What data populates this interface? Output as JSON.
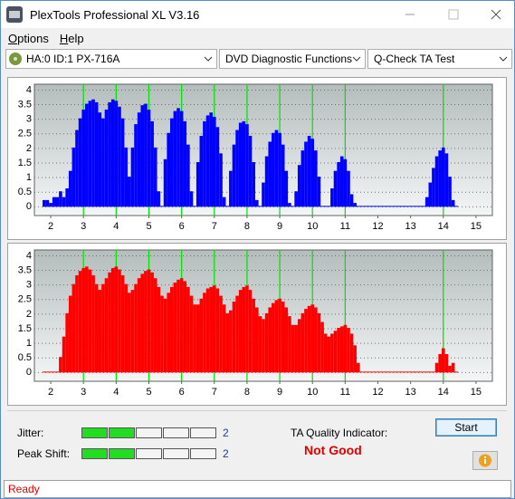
{
  "window": {
    "title": "PlexTools Professional XL V3.16"
  },
  "menu": [
    "Options",
    "Help"
  ],
  "toolbar": [
    "HA:0 ID:1  PX-716A",
    "DVD Diagnostic Functions",
    "Q-Check TA Test"
  ],
  "chart_data": [
    {
      "type": "bar",
      "color": "#0000ff",
      "vline_color": "#00e000",
      "grid": true,
      "xlim": [
        1.5,
        15.5
      ],
      "xticks": [
        2,
        3,
        4,
        5,
        6,
        7,
        8,
        9,
        10,
        11,
        12,
        13,
        14,
        15
      ],
      "ylim": [
        -0.3,
        4.2
      ],
      "yticks": [
        0,
        0.5,
        1,
        1.5,
        2,
        2.5,
        3,
        3.5,
        4
      ],
      "vlines": [
        3,
        4,
        5,
        6,
        7,
        8,
        9,
        10,
        11,
        14
      ],
      "x": [
        1.8,
        1.9,
        2.0,
        2.1,
        2.2,
        2.3,
        2.4,
        2.5,
        2.6,
        2.7,
        2.8,
        2.9,
        3.0,
        3.1,
        3.2,
        3.3,
        3.4,
        3.5,
        3.6,
        3.7,
        3.8,
        3.9,
        4.0,
        4.1,
        4.2,
        4.3,
        4.4,
        4.5,
        4.6,
        4.7,
        4.8,
        4.9,
        5.0,
        5.1,
        5.2,
        5.3,
        5.4,
        5.5,
        5.6,
        5.7,
        5.8,
        5.9,
        6.0,
        6.1,
        6.2,
        6.3,
        6.4,
        6.5,
        6.6,
        6.7,
        6.8,
        6.9,
        7.0,
        7.1,
        7.2,
        7.3,
        7.4,
        7.5,
        7.6,
        7.7,
        7.8,
        7.9,
        8.0,
        8.1,
        8.2,
        8.3,
        8.4,
        8.5,
        8.6,
        8.7,
        8.8,
        8.9,
        9.0,
        9.1,
        9.2,
        9.3,
        9.4,
        9.5,
        9.6,
        9.7,
        9.8,
        9.9,
        10.0,
        10.1,
        10.2,
        10.3,
        10.4,
        10.5,
        10.6,
        10.7,
        10.8,
        10.9,
        11.0,
        11.1,
        11.2,
        11.3,
        11.4,
        11.5,
        11.6,
        11.7,
        11.8,
        11.9,
        12.0,
        12.1,
        12.2,
        12.3,
        12.4,
        12.5,
        12.6,
        12.7,
        12.8,
        12.9,
        13.0,
        13.1,
        13.2,
        13.3,
        13.4,
        13.5,
        13.6,
        13.7,
        13.8,
        13.9,
        14.0,
        14.1,
        14.2,
        14.3,
        14.4
      ],
      "values": [
        0.2,
        0.2,
        0.1,
        0.3,
        0.3,
        0.5,
        0.3,
        0.6,
        1.2,
        2.0,
        2.6,
        3.0,
        3.3,
        3.5,
        3.6,
        3.65,
        3.55,
        3.2,
        3.0,
        3.3,
        3.55,
        3.65,
        3.6,
        3.4,
        3.0,
        2.0,
        1.0,
        2.0,
        2.8,
        3.2,
        3.45,
        3.5,
        3.3,
        2.9,
        2.0,
        0.5,
        0,
        1.6,
        2.5,
        3.0,
        3.25,
        3.35,
        3.25,
        2.9,
        2.1,
        0.5,
        0,
        1.5,
        2.4,
        2.9,
        3.1,
        3.2,
        3.05,
        2.7,
        1.8,
        0.3,
        0,
        1.2,
        2.1,
        2.6,
        2.85,
        2.9,
        2.8,
        2.4,
        1.5,
        0.2,
        0,
        0.8,
        1.7,
        2.2,
        2.5,
        2.6,
        2.5,
        2.1,
        1.2,
        0.1,
        0,
        0.5,
        1.4,
        1.9,
        2.2,
        2.4,
        2.3,
        1.9,
        1.0,
        0,
        0,
        0,
        0.6,
        1.2,
        1.5,
        1.7,
        1.6,
        1.2,
        0.4,
        0.1,
        0,
        0,
        0,
        0,
        0,
        0,
        0,
        0,
        0,
        0,
        0,
        0,
        0,
        0,
        0,
        0,
        0,
        0,
        0,
        0,
        0,
        0.3,
        0.8,
        1.3,
        1.7,
        1.9,
        2.0,
        1.8,
        1.0,
        0.2,
        0
      ]
    },
    {
      "type": "bar",
      "color": "#ff0000",
      "vline_color": "#00e000",
      "grid": true,
      "xlim": [
        1.5,
        15.5
      ],
      "xticks": [
        2,
        3,
        4,
        5,
        6,
        7,
        8,
        9,
        10,
        11,
        12,
        13,
        14,
        15
      ],
      "ylim": [
        -0.3,
        4.2
      ],
      "yticks": [
        0,
        0.5,
        1,
        1.5,
        2,
        2.5,
        3,
        3.5,
        4
      ],
      "vlines": [
        3,
        4,
        5,
        6,
        7,
        8,
        9,
        10,
        11,
        14
      ],
      "x": [
        1.8,
        1.9,
        2.0,
        2.1,
        2.2,
        2.3,
        2.4,
        2.5,
        2.6,
        2.7,
        2.8,
        2.9,
        3.0,
        3.1,
        3.2,
        3.3,
        3.4,
        3.5,
        3.6,
        3.7,
        3.8,
        3.9,
        4.0,
        4.1,
        4.2,
        4.3,
        4.4,
        4.5,
        4.6,
        4.7,
        4.8,
        4.9,
        5.0,
        5.1,
        5.2,
        5.3,
        5.4,
        5.5,
        5.6,
        5.7,
        5.8,
        5.9,
        6.0,
        6.1,
        6.2,
        6.3,
        6.4,
        6.5,
        6.6,
        6.7,
        6.8,
        6.9,
        7.0,
        7.1,
        7.2,
        7.3,
        7.4,
        7.5,
        7.6,
        7.7,
        7.8,
        7.9,
        8.0,
        8.1,
        8.2,
        8.3,
        8.4,
        8.5,
        8.6,
        8.7,
        8.8,
        8.9,
        9.0,
        9.1,
        9.2,
        9.3,
        9.4,
        9.5,
        9.6,
        9.7,
        9.8,
        9.9,
        10.0,
        10.1,
        10.2,
        10.3,
        10.4,
        10.5,
        10.6,
        10.7,
        10.8,
        10.9,
        11.0,
        11.1,
        11.2,
        11.3,
        11.4,
        11.5,
        11.6,
        11.7,
        11.8,
        11.9,
        12.0,
        12.1,
        12.2,
        12.3,
        12.4,
        12.5,
        12.6,
        12.7,
        12.8,
        12.9,
        13.0,
        13.1,
        13.2,
        13.3,
        13.4,
        13.5,
        13.6,
        13.7,
        13.8,
        13.9,
        14.0,
        14.1,
        14.2,
        14.3,
        14.4
      ],
      "values": [
        0,
        0,
        0,
        0,
        0,
        0.5,
        1.2,
        2.0,
        2.6,
        3.0,
        3.3,
        3.45,
        3.55,
        3.6,
        3.5,
        3.3,
        3.0,
        2.8,
        3.0,
        3.2,
        3.4,
        3.55,
        3.6,
        3.5,
        3.3,
        3.0,
        2.7,
        2.8,
        3.0,
        3.2,
        3.35,
        3.45,
        3.5,
        3.4,
        3.2,
        2.9,
        2.6,
        2.5,
        2.7,
        2.9,
        3.05,
        3.15,
        3.2,
        3.1,
        2.9,
        2.6,
        2.3,
        2.3,
        2.5,
        2.7,
        2.85,
        2.9,
        2.95,
        2.85,
        2.6,
        2.3,
        2.0,
        2.1,
        2.4,
        2.6,
        2.8,
        2.9,
        2.95,
        2.8,
        2.5,
        2.2,
        1.9,
        1.8,
        2.0,
        2.2,
        2.35,
        2.45,
        2.5,
        2.4,
        2.2,
        1.9,
        1.6,
        1.6,
        1.8,
        2.0,
        2.15,
        2.25,
        2.3,
        2.2,
        2.0,
        1.7,
        1.3,
        1.2,
        1.3,
        1.4,
        1.5,
        1.55,
        1.6,
        1.5,
        1.3,
        0.9,
        0.3,
        0,
        0,
        0,
        0,
        0,
        0,
        0,
        0,
        0,
        0,
        0,
        0,
        0,
        0,
        0,
        0,
        0,
        0,
        0,
        0,
        0,
        0,
        0,
        0.3,
        0.6,
        0.8,
        0.6,
        0.2,
        0.3,
        0
      ]
    }
  ],
  "gauges": [
    {
      "label": "Jitter:",
      "value": 2
    },
    {
      "label": "Peak Shift:",
      "value": 2
    }
  ],
  "quality": {
    "label": "TA Quality Indicator:",
    "result": "Not Good"
  },
  "buttons": {
    "start": "Start"
  },
  "status": "Ready"
}
